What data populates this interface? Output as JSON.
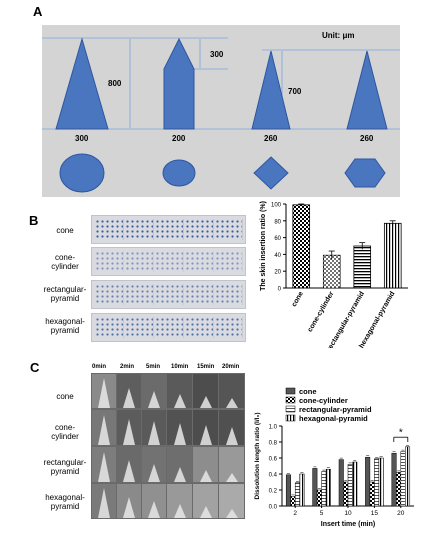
{
  "panel_a": {
    "label": "A",
    "unit": "Unit: μm",
    "dims": {
      "h800": "800",
      "h300": "300",
      "h700": "700"
    },
    "bases": [
      "300",
      "200",
      "260",
      "260"
    ]
  },
  "panel_b": {
    "label": "B",
    "rows": [
      "cone",
      "cone-\ncylinder",
      "rectangular-\npyramid",
      "hexagonal-\npyramid"
    ]
  },
  "panel_c": {
    "label": "C",
    "times": [
      "0min",
      "2min",
      "5min",
      "10min",
      "15min",
      "20min"
    ],
    "rows": [
      "cone",
      "cone-\ncylinder",
      "rectangular-\npyramid",
      "hexagonal-\npyramid"
    ]
  },
  "colors": {
    "shape_fill": "#4a76c0",
    "shape_stroke": "#2d56a0",
    "panel_a_bg": "#d4d4d4",
    "guide_line": "#7aa3e0"
  },
  "chart_data": [
    {
      "type": "bar",
      "categories": [
        "cone",
        "cone-cylinder",
        "rectangular-pyramid",
        "hexagonal-pyramid"
      ],
      "values": [
        99,
        39,
        50,
        77
      ],
      "errors": [
        1,
        5,
        4,
        3
      ],
      "ylabel": "The skin insertion ratio (%)",
      "ylim": [
        0,
        100
      ],
      "yticks": [
        "0",
        "20",
        "40",
        "60",
        "80",
        "100"
      ]
    },
    {
      "type": "bar",
      "categories": [
        "2",
        "5",
        "10",
        "15",
        "20"
      ],
      "xlabel": "Insert time (min)",
      "ylabel": "Dissolution length ratio (l/l₀)",
      "ylim": [
        0,
        1.0
      ],
      "yticks": [
        "0.0",
        "0.2",
        "0.4",
        "0.6",
        "0.8",
        "1.0"
      ],
      "series": [
        {
          "name": "cone",
          "values": [
            0.39,
            0.47,
            0.58,
            0.61,
            0.66
          ]
        },
        {
          "name": "cone-cylinder",
          "values": [
            0.12,
            0.2,
            0.3,
            0.3,
            0.42
          ]
        },
        {
          "name": "rectangular-pyramid",
          "values": [
            0.29,
            0.43,
            0.52,
            0.59,
            0.68
          ]
        },
        {
          "name": "hexagonal-pyramid",
          "values": [
            0.4,
            0.46,
            0.55,
            0.6,
            0.74
          ]
        }
      ],
      "annotation": "*"
    }
  ]
}
